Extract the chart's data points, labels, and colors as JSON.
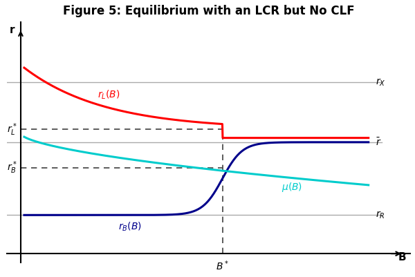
{
  "title": "Figure 5: Equilibrium with an LCR but No CLF",
  "title_fontsize": 12,
  "xlabel": "B",
  "ylabel": "r",
  "B_star": 0.58,
  "r_L_star": 0.58,
  "r_B_star": 0.4,
  "r_X": 0.8,
  "r_bar": 0.52,
  "r_R": 0.18,
  "colors": {
    "rL": "#ff0000",
    "rB": "#00008b",
    "mu": "#00cccc",
    "hlines": "#aaaaaa",
    "dashed": "#404040"
  },
  "annotation_fontsize": 10
}
